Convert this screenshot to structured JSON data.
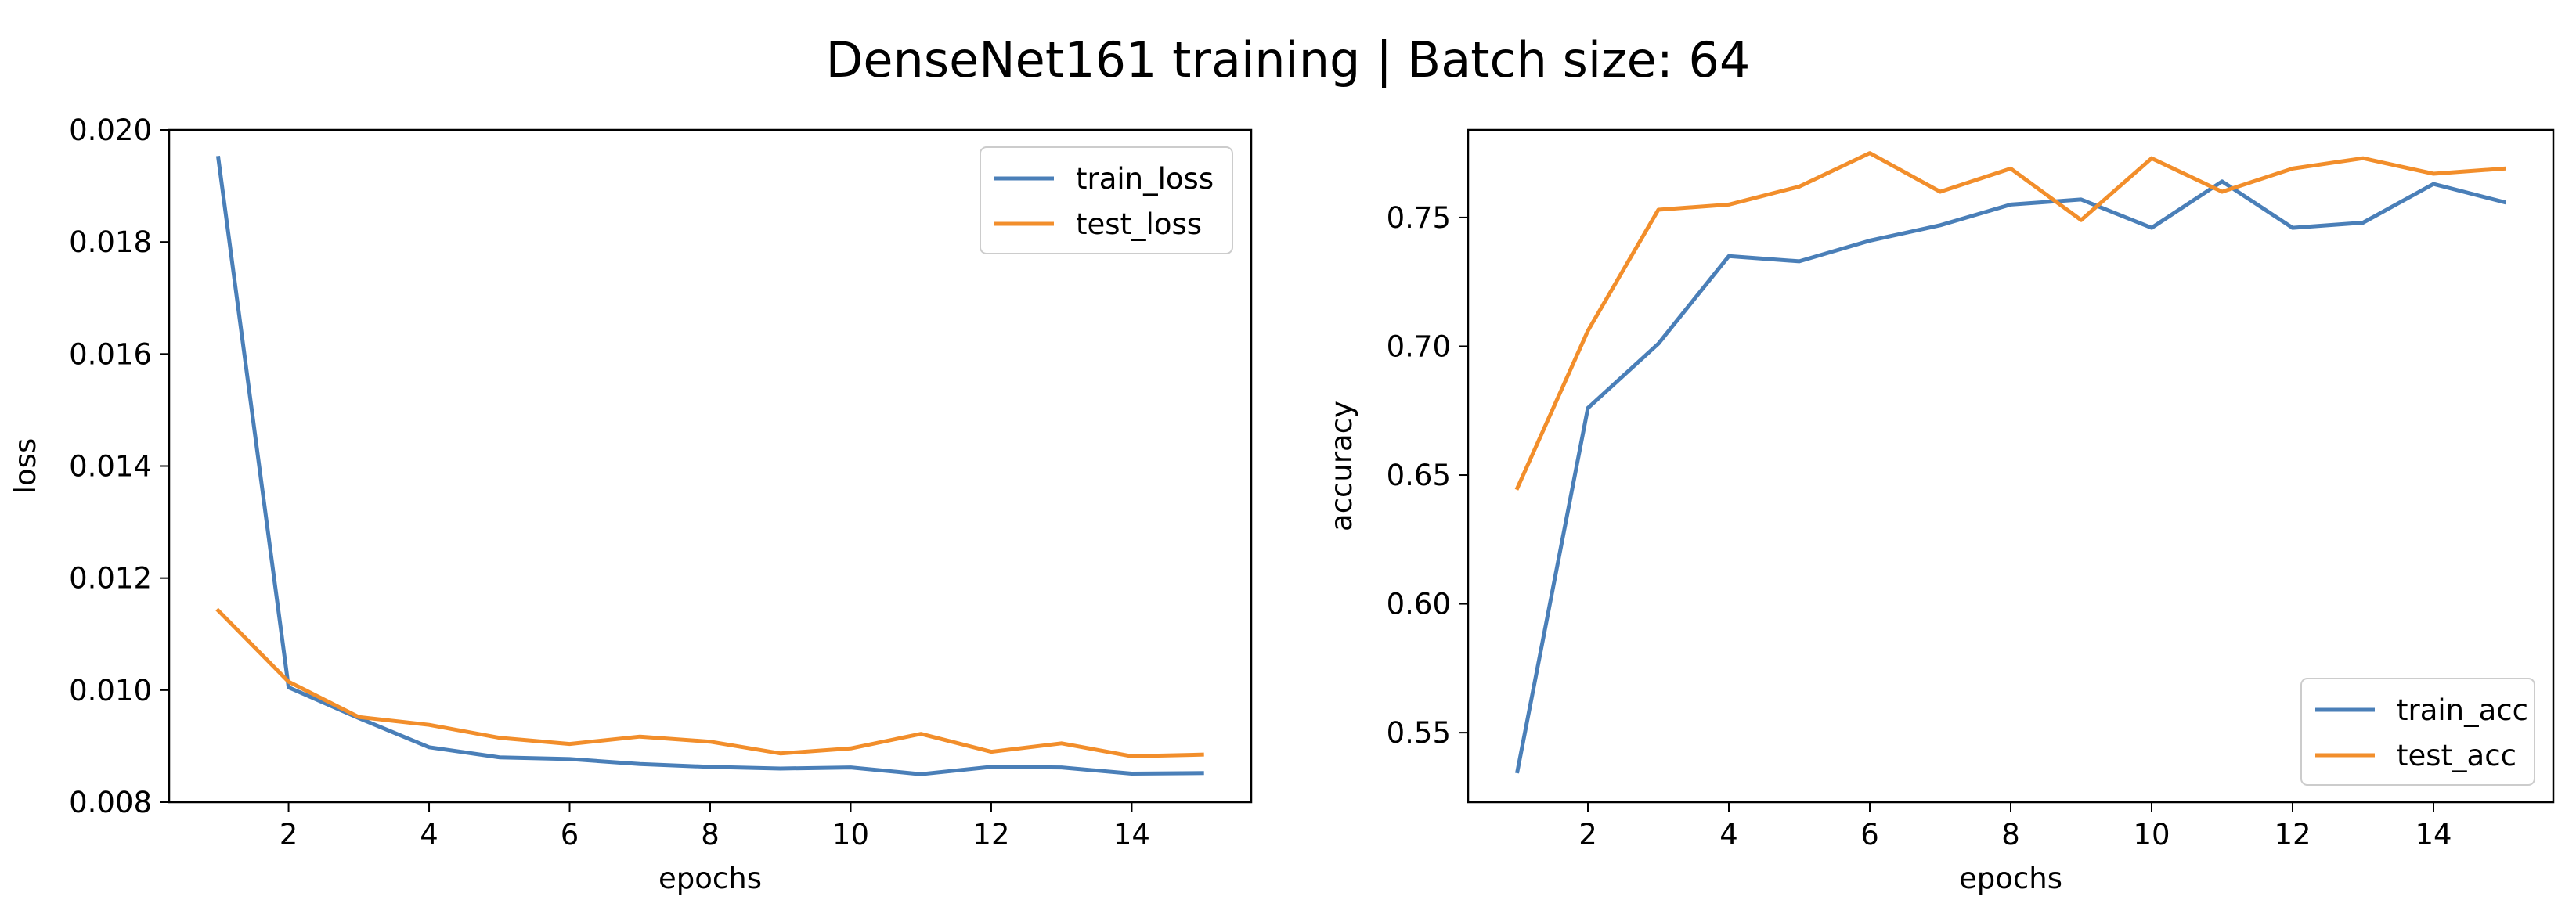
{
  "figure": {
    "title": "DenseNet161 training | Batch size: 64"
  },
  "colors": {
    "series_blue": "#4a7fb8",
    "series_orange": "#f28e2b",
    "axes": "#000000",
    "legend_border": "#cccccc"
  },
  "chart_data": [
    {
      "type": "line",
      "xlabel": "epochs",
      "ylabel": "loss",
      "xlim": [
        0.3,
        15.7
      ],
      "ylim": [
        0.008,
        0.02
      ],
      "xticks": [
        2,
        4,
        6,
        8,
        10,
        12,
        14
      ],
      "xtick_labels": [
        "2",
        "4",
        "6",
        "8",
        "10",
        "12",
        "14"
      ],
      "yticks": [
        0.008,
        0.01,
        0.012,
        0.014,
        0.016,
        0.018,
        0.02
      ],
      "ytick_labels": [
        "0.008",
        "0.010",
        "0.012",
        "0.014",
        "0.016",
        "0.018",
        "0.020"
      ],
      "grid": false,
      "legend_position": "top-right",
      "x": [
        1,
        2,
        3,
        4,
        5,
        6,
        7,
        8,
        9,
        10,
        11,
        12,
        13,
        14,
        15
      ],
      "series": [
        {
          "name": "train_loss",
          "color": "#4a7fb8",
          "values": [
            0.0195,
            0.01005,
            0.0095,
            0.00898,
            0.0088,
            0.00877,
            0.00868,
            0.00863,
            0.0086,
            0.00862,
            0.0085,
            0.00863,
            0.00862,
            0.00851,
            0.00852
          ]
        },
        {
          "name": "test_loss",
          "color": "#f28e2b",
          "values": [
            0.01142,
            0.01015,
            0.00952,
            0.00938,
            0.00915,
            0.00904,
            0.00917,
            0.00908,
            0.00887,
            0.00896,
            0.00922,
            0.0089,
            0.00905,
            0.00882,
            0.00885
          ]
        }
      ]
    },
    {
      "type": "line",
      "xlabel": "epochs",
      "ylabel": "accuracy",
      "xlim": [
        0.3,
        15.7
      ],
      "ylim": [
        0.523,
        0.784
      ],
      "xticks": [
        2,
        4,
        6,
        8,
        10,
        12,
        14
      ],
      "xtick_labels": [
        "2",
        "4",
        "6",
        "8",
        "10",
        "12",
        "14"
      ],
      "yticks": [
        0.55,
        0.6,
        0.65,
        0.7,
        0.75
      ],
      "ytick_labels": [
        "0.55",
        "0.60",
        "0.65",
        "0.70",
        "0.75"
      ],
      "grid": false,
      "legend_position": "bottom-right",
      "x": [
        1,
        2,
        3,
        4,
        5,
        6,
        7,
        8,
        9,
        10,
        11,
        12,
        13,
        14,
        15
      ],
      "series": [
        {
          "name": "train_acc",
          "color": "#4a7fb8",
          "values": [
            0.535,
            0.676,
            0.701,
            0.735,
            0.733,
            0.741,
            0.747,
            0.755,
            0.757,
            0.746,
            0.764,
            0.746,
            0.748,
            0.763,
            0.756
          ]
        },
        {
          "name": "test_acc",
          "color": "#f28e2b",
          "values": [
            0.645,
            0.706,
            0.753,
            0.755,
            0.762,
            0.775,
            0.76,
            0.769,
            0.749,
            0.773,
            0.76,
            0.769,
            0.773,
            0.767,
            0.769
          ]
        }
      ]
    }
  ]
}
